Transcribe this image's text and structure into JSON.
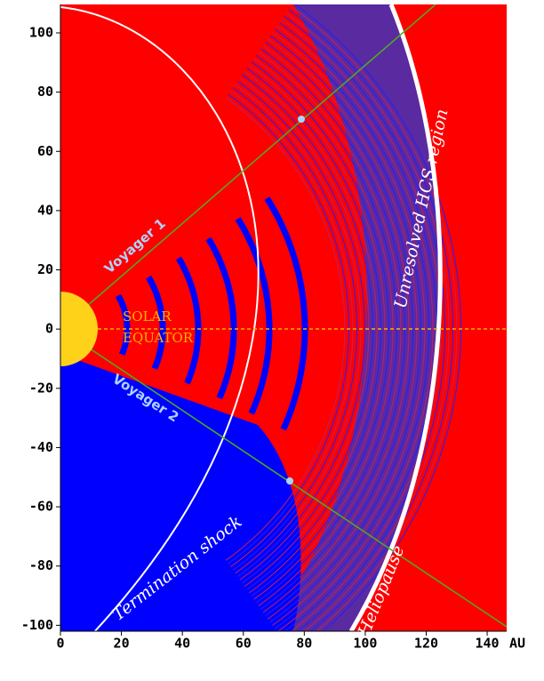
{
  "chart_data": {
    "type": "heliosphere",
    "xlim": [
      0,
      146.4
    ],
    "ylim": [
      -102,
      109.6
    ],
    "xticks": [
      0,
      20,
      40,
      60,
      80,
      100,
      120,
      140
    ],
    "yticks": [
      -100,
      -80,
      -60,
      -40,
      -20,
      0,
      20,
      40,
      60,
      80,
      100
    ],
    "x_unit": "AU",
    "annotations": [
      "Voyager 1",
      "Voyager 2",
      "SOLAR",
      "EQUATOR",
      "Unresolved HCS region",
      "Termination shock",
      "Heliopause"
    ]
  }
}
